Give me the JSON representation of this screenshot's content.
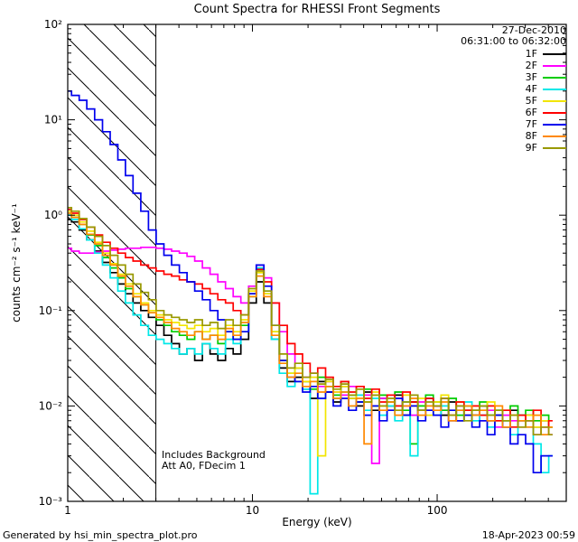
{
  "footer": {
    "left": "Generated by hsi_min_spectra_plot.pro",
    "right": "18-Apr-2023 00:59"
  },
  "chart_data": {
    "type": "line",
    "mode": "steps",
    "x_scale": "log",
    "y_scale": "log",
    "grid": false,
    "legend_position": "top-right-inside",
    "title": "Count Spectra for RHESSI Front Segments",
    "xlabel": "Energy (keV)",
    "ylabel": "counts cm⁻² s⁻¹ keV⁻¹",
    "xlim": [
      1,
      500
    ],
    "ylim": [
      0.001,
      100
    ],
    "x_ticks": [
      {
        "value": 1,
        "label": "1"
      },
      {
        "value": 10,
        "label": "10"
      },
      {
        "value": 100,
        "label": "100"
      }
    ],
    "y_ticks": [
      {
        "value": 100,
        "label": "10²"
      },
      {
        "value": 10,
        "label": "10¹"
      },
      {
        "value": 1,
        "label": "10⁰"
      },
      {
        "value": 0.1,
        "label": "10⁻¹"
      },
      {
        "value": 0.01,
        "label": "10⁻²"
      },
      {
        "value": 0.001,
        "label": "10⁻³"
      }
    ],
    "observation": {
      "date": "27-Dec-2010",
      "time_range": "06:31:00 to 06:32:00"
    },
    "annotations": {
      "line1": "Includes Background",
      "line2": "Att A0, FDecim 1"
    },
    "excluded_region": {
      "x_from": 1,
      "x_to": 3,
      "style": "diagonal-hatch"
    },
    "energies_keV": [
      1.0,
      1.1,
      1.21,
      1.33,
      1.47,
      1.62,
      1.78,
      1.96,
      2.15,
      2.37,
      2.61,
      2.87,
      3.16,
      3.48,
      3.83,
      4.22,
      4.64,
      5.11,
      5.62,
      6.19,
      6.81,
      7.5,
      8.25,
      9.09,
      10.0,
      11.0,
      12.1,
      13.3,
      14.7,
      16.2,
      17.8,
      19.6,
      21.5,
      23.7,
      26.1,
      28.7,
      31.6,
      34.8,
      38.3,
      42.2,
      46.4,
      51.1,
      56.2,
      61.9,
      68.1,
      75.0,
      82.5,
      90.9,
      100,
      110,
      121,
      133,
      147,
      162,
      178,
      196,
      215,
      237,
      261,
      287,
      316,
      348,
      383,
      422
    ],
    "series": [
      {
        "name": "1F",
        "color": "#000000",
        "values": [
          0.9,
          0.85,
          0.7,
          0.55,
          0.42,
          0.32,
          0.25,
          0.19,
          0.15,
          0.12,
          0.1,
          0.085,
          0.07,
          0.055,
          0.045,
          0.035,
          0.04,
          0.03,
          0.045,
          0.035,
          0.03,
          0.04,
          0.035,
          0.05,
          0.12,
          0.2,
          0.12,
          0.05,
          0.025,
          0.018,
          0.02,
          0.015,
          0.012,
          0.018,
          0.014,
          0.011,
          0.016,
          0.012,
          0.01,
          0.014,
          0.009,
          0.012,
          0.01,
          0.013,
          0.008,
          0.011,
          0.009,
          0.012,
          0.01,
          0.008,
          0.011,
          0.007,
          0.009,
          0.008,
          0.01,
          0.007,
          0.008,
          0.006,
          0.009,
          0.007,
          0.008,
          0.006,
          0.007,
          0.006
        ]
      },
      {
        "name": "2F",
        "color": "#ff00ff",
        "values": [
          0.45,
          0.42,
          0.4,
          0.4,
          0.41,
          0.42,
          0.43,
          0.44,
          0.45,
          0.45,
          0.46,
          0.46,
          0.45,
          0.44,
          0.42,
          0.4,
          0.37,
          0.33,
          0.28,
          0.24,
          0.2,
          0.17,
          0.14,
          0.12,
          0.18,
          0.3,
          0.22,
          0.12,
          0.06,
          0.035,
          0.025,
          0.02,
          0.022,
          0.016,
          0.018,
          0.014,
          0.013,
          0.016,
          0.011,
          0.013,
          0.0025,
          0.012,
          0.009,
          0.012,
          0.01,
          0.008,
          0.011,
          0.009,
          0.01,
          0.009,
          0.007,
          0.01,
          0.008,
          0.009,
          0.007,
          0.009,
          0.006,
          0.008,
          0.007,
          0.006,
          0.007,
          0.005,
          0.006,
          0.005
        ]
      },
      {
        "name": "3F",
        "color": "#00cc00",
        "values": [
          1.0,
          0.95,
          0.8,
          0.62,
          0.48,
          0.36,
          0.28,
          0.22,
          0.17,
          0.14,
          0.115,
          0.095,
          0.08,
          0.07,
          0.06,
          0.055,
          0.05,
          0.06,
          0.05,
          0.055,
          0.045,
          0.06,
          0.05,
          0.07,
          0.15,
          0.25,
          0.15,
          0.06,
          0.03,
          0.022,
          0.025,
          0.018,
          0.015,
          0.02,
          0.016,
          0.013,
          0.018,
          0.013,
          0.011,
          0.015,
          0.01,
          0.013,
          0.011,
          0.014,
          0.009,
          0.004,
          0.01,
          0.013,
          0.011,
          0.009,
          0.012,
          0.008,
          0.01,
          0.009,
          0.011,
          0.008,
          0.009,
          0.007,
          0.01,
          0.008,
          0.009,
          0.007,
          0.008,
          0.006
        ]
      },
      {
        "name": "4F",
        "color": "#00e8e8",
        "values": [
          1.0,
          0.9,
          0.72,
          0.55,
          0.4,
          0.3,
          0.22,
          0.16,
          0.12,
          0.09,
          0.07,
          0.055,
          0.05,
          0.045,
          0.04,
          0.035,
          0.04,
          0.035,
          0.045,
          0.04,
          0.035,
          0.05,
          0.045,
          0.06,
          0.14,
          0.28,
          0.16,
          0.05,
          0.022,
          0.016,
          0.018,
          0.015,
          0.0012,
          0.012,
          0.016,
          0.012,
          0.014,
          0.01,
          0.013,
          0.009,
          0.012,
          0.008,
          0.01,
          0.007,
          0.011,
          0.003,
          0.009,
          0.012,
          0.008,
          0.01,
          0.007,
          0.009,
          0.011,
          0.007,
          0.008,
          0.006,
          0.009,
          0.007,
          0.005,
          0.008,
          0.006,
          0.004,
          0.002,
          0.003
        ]
      },
      {
        "name": "5F",
        "color": "#f2e500",
        "values": [
          1.1,
          1.0,
          0.85,
          0.68,
          0.52,
          0.4,
          0.31,
          0.24,
          0.19,
          0.15,
          0.12,
          0.1,
          0.09,
          0.08,
          0.075,
          0.07,
          0.065,
          0.07,
          0.06,
          0.065,
          0.055,
          0.07,
          0.06,
          0.08,
          0.16,
          0.25,
          0.15,
          0.06,
          0.03,
          0.022,
          0.025,
          0.018,
          0.02,
          0.003,
          0.018,
          0.014,
          0.016,
          0.012,
          0.015,
          0.011,
          0.014,
          0.01,
          0.012,
          0.009,
          0.013,
          0.01,
          0.012,
          0.008,
          0.011,
          0.013,
          0.009,
          0.011,
          0.008,
          0.01,
          0.009,
          0.011,
          0.007,
          0.009,
          0.008,
          0.006,
          0.008,
          0.006,
          0.007,
          0.006
        ]
      },
      {
        "name": "6F",
        "color": "#ff0000",
        "values": [
          1.15,
          1.05,
          0.9,
          0.75,
          0.62,
          0.52,
          0.45,
          0.4,
          0.36,
          0.33,
          0.3,
          0.28,
          0.26,
          0.24,
          0.23,
          0.21,
          0.2,
          0.19,
          0.17,
          0.15,
          0.13,
          0.12,
          0.1,
          0.09,
          0.15,
          0.27,
          0.2,
          0.12,
          0.07,
          0.045,
          0.035,
          0.028,
          0.022,
          0.025,
          0.02,
          0.016,
          0.018,
          0.014,
          0.016,
          0.012,
          0.015,
          0.011,
          0.013,
          0.01,
          0.014,
          0.011,
          0.009,
          0.012,
          0.01,
          0.012,
          0.008,
          0.011,
          0.009,
          0.01,
          0.008,
          0.01,
          0.007,
          0.009,
          0.006,
          0.008,
          0.007,
          0.009,
          0.006,
          0.007
        ]
      },
      {
        "name": "7F",
        "color": "#0000ee",
        "values": [
          20,
          18,
          16,
          13,
          10,
          7.5,
          5.5,
          3.8,
          2.6,
          1.7,
          1.1,
          0.7,
          0.5,
          0.38,
          0.3,
          0.25,
          0.2,
          0.16,
          0.13,
          0.1,
          0.08,
          0.06,
          0.05,
          0.06,
          0.15,
          0.3,
          0.18,
          0.07,
          0.03,
          0.02,
          0.018,
          0.014,
          0.016,
          0.012,
          0.014,
          0.01,
          0.012,
          0.009,
          0.011,
          0.008,
          0.01,
          0.007,
          0.009,
          0.012,
          0.008,
          0.01,
          0.007,
          0.009,
          0.008,
          0.006,
          0.009,
          0.007,
          0.008,
          0.006,
          0.007,
          0.005,
          0.008,
          0.006,
          0.004,
          0.005,
          0.004,
          0.002,
          0.003,
          0.003
        ]
      },
      {
        "name": "8F",
        "color": "#ff8800",
        "values": [
          1.05,
          0.95,
          0.8,
          0.63,
          0.5,
          0.38,
          0.3,
          0.23,
          0.18,
          0.14,
          0.115,
          0.095,
          0.085,
          0.075,
          0.065,
          0.06,
          0.055,
          0.06,
          0.05,
          0.055,
          0.05,
          0.065,
          0.055,
          0.075,
          0.14,
          0.23,
          0.14,
          0.055,
          0.028,
          0.02,
          0.022,
          0.016,
          0.018,
          0.014,
          0.016,
          0.012,
          0.014,
          0.01,
          0.012,
          0.004,
          0.013,
          0.009,
          0.011,
          0.008,
          0.01,
          0.012,
          0.008,
          0.01,
          0.009,
          0.011,
          0.007,
          0.009,
          0.01,
          0.008,
          0.009,
          0.007,
          0.01,
          0.006,
          0.008,
          0.007,
          0.006,
          0.008,
          0.005,
          0.006
        ]
      },
      {
        "name": "9F",
        "color": "#999900",
        "values": [
          1.2,
          1.1,
          0.92,
          0.75,
          0.6,
          0.48,
          0.38,
          0.3,
          0.24,
          0.19,
          0.155,
          0.13,
          0.1,
          0.09,
          0.085,
          0.08,
          0.075,
          0.08,
          0.07,
          0.075,
          0.065,
          0.08,
          0.07,
          0.09,
          0.17,
          0.26,
          0.16,
          0.07,
          0.035,
          0.025,
          0.028,
          0.02,
          0.022,
          0.017,
          0.019,
          0.015,
          0.017,
          0.013,
          0.015,
          0.011,
          0.013,
          0.01,
          0.012,
          0.009,
          0.011,
          0.013,
          0.009,
          0.011,
          0.01,
          0.012,
          0.008,
          0.01,
          0.007,
          0.009,
          0.01,
          0.008,
          0.009,
          0.007,
          0.008,
          0.006,
          0.007,
          0.005,
          0.006,
          0.005
        ]
      }
    ]
  }
}
